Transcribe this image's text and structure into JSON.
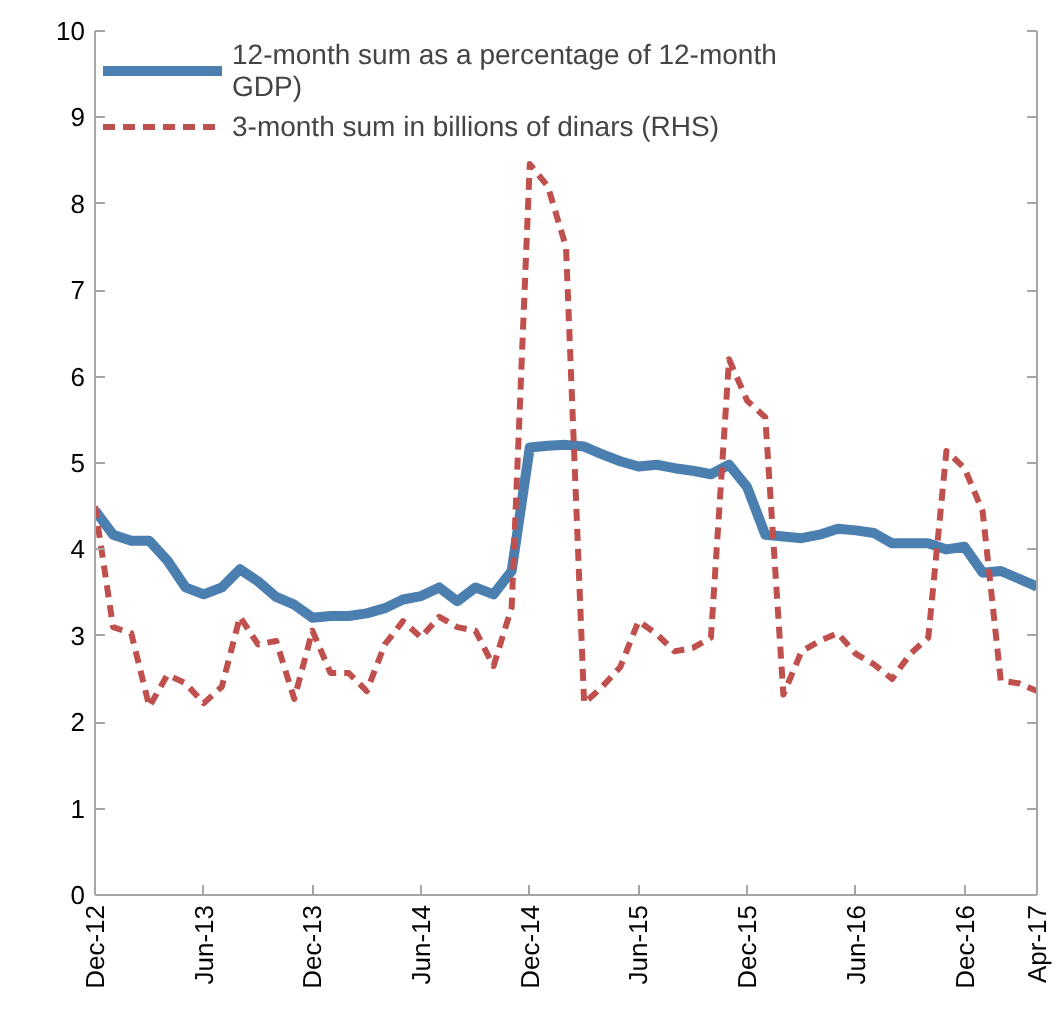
{
  "chart_data": {
    "type": "line",
    "categories": [
      "Dec-12",
      null,
      null,
      null,
      null,
      null,
      "Jun-13",
      null,
      null,
      null,
      null,
      null,
      "Dec-13",
      null,
      null,
      null,
      null,
      null,
      "Jun-14",
      null,
      null,
      null,
      null,
      null,
      "Dec-14",
      null,
      null,
      null,
      null,
      null,
      "Jun-15",
      null,
      null,
      null,
      null,
      null,
      "Dec-15",
      null,
      null,
      null,
      null,
      null,
      "Jun-16",
      null,
      null,
      null,
      null,
      null,
      "Dec-16",
      null,
      null,
      null,
      "Apr-17"
    ],
    "series": [
      {
        "name": "12-month sum as a percentage of 12-month GDP)",
        "color": "#4a7fb0",
        "line_style": "solid",
        "values": [
          4.45,
          4.17,
          4.1,
          4.1,
          3.87,
          3.56,
          3.48,
          3.56,
          3.77,
          3.63,
          3.45,
          3.36,
          3.21,
          3.23,
          3.23,
          3.26,
          3.32,
          3.42,
          3.46,
          3.56,
          3.4,
          3.56,
          3.48,
          3.75,
          5.18,
          5.2,
          5.21,
          5.19,
          5.1,
          5.02,
          4.96,
          4.98,
          4.94,
          4.91,
          4.87,
          4.98,
          4.72,
          4.17,
          4.15,
          4.13,
          4.17,
          4.24,
          4.22,
          4.19,
          4.07,
          4.07,
          4.07,
          4.0,
          4.03,
          3.73,
          3.75,
          3.66,
          3.57
        ]
      },
      {
        "name": "3-month sum in billions of dinars (RHS)",
        "color": "#c0504d",
        "line_style": "dashed",
        "values": [
          4.5,
          3.1,
          3.03,
          2.18,
          2.55,
          2.45,
          2.22,
          2.41,
          3.22,
          2.9,
          2.94,
          2.27,
          3.06,
          2.57,
          2.57,
          2.36,
          2.9,
          3.17,
          2.98,
          3.22,
          3.1,
          3.06,
          2.65,
          3.33,
          8.46,
          8.2,
          7.5,
          2.22,
          2.41,
          2.64,
          3.17,
          3.02,
          2.82,
          2.86,
          2.98,
          6.2,
          5.72,
          5.53,
          2.32,
          2.82,
          2.94,
          3.03,
          2.79,
          2.67,
          2.5,
          2.79,
          2.98,
          5.14,
          4.94,
          4.44,
          2.48,
          2.45,
          2.36
        ]
      }
    ],
    "ylim": [
      0,
      10
    ],
    "yticks": [
      0,
      1,
      2,
      3,
      4,
      5,
      6,
      7,
      8,
      9,
      10
    ],
    "grid": false,
    "legend": "top left"
  }
}
